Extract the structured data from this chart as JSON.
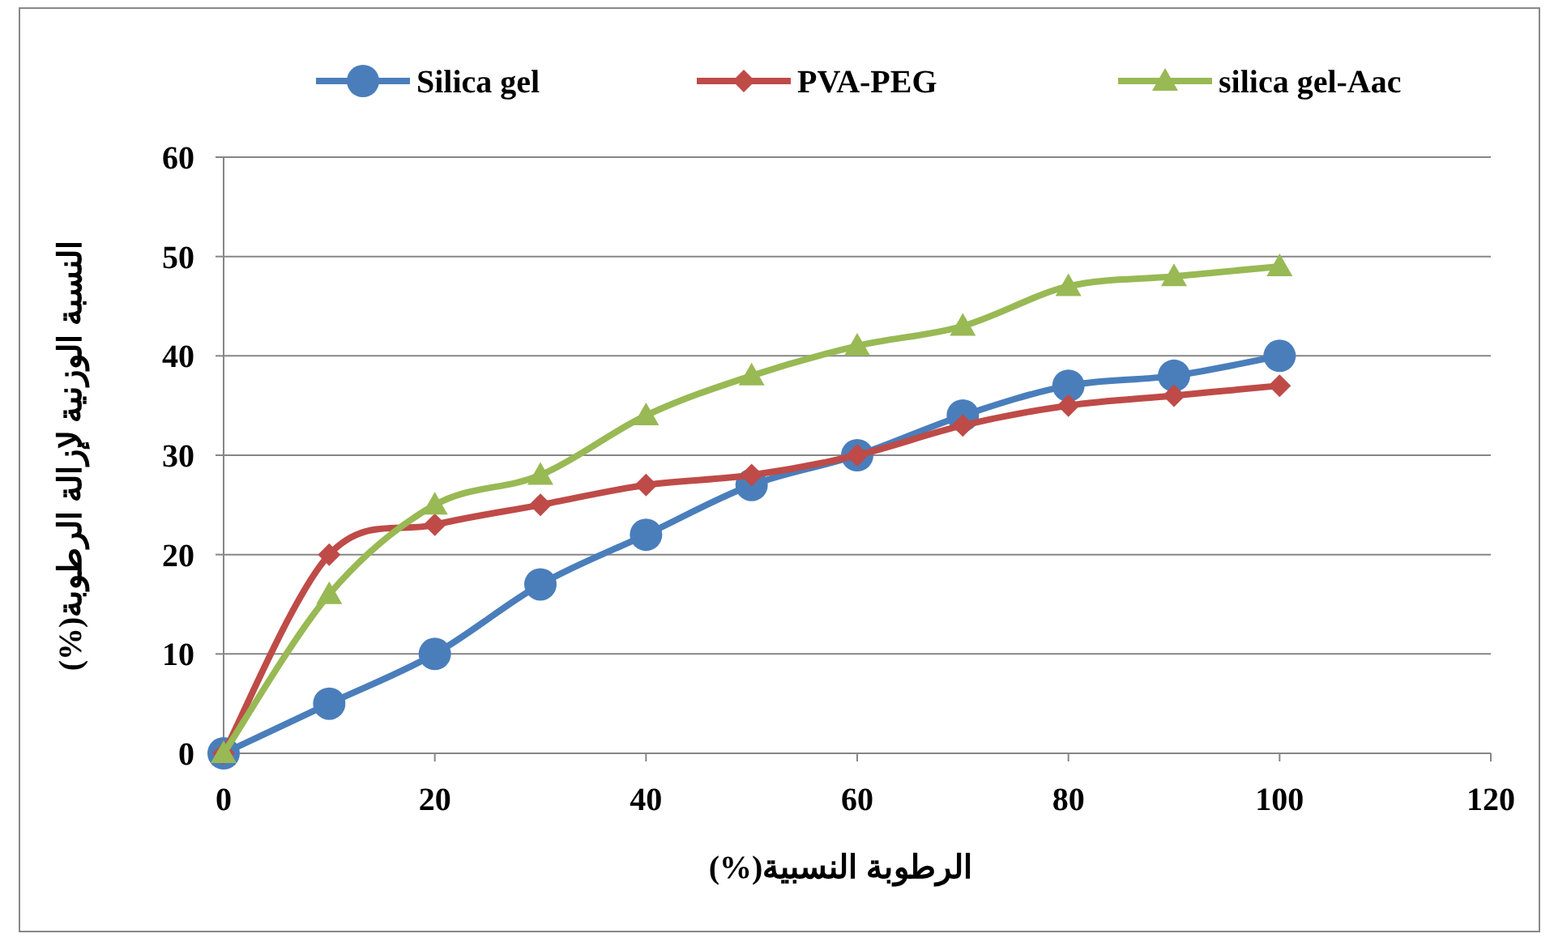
{
  "chart_data": {
    "type": "line",
    "xlabel": "الرطوبة النسبية(%)",
    "ylabel": "النسبة الوزنية لإزالة الرطوبة(%)",
    "x": [
      0,
      10,
      20,
      30,
      40,
      50,
      60,
      70,
      80,
      90,
      100
    ],
    "series": [
      {
        "name": "Silica gel",
        "color": "#4a7ebb",
        "marker": "circle",
        "values": [
          0,
          5,
          10,
          17,
          22,
          27,
          30,
          34,
          37,
          38,
          40
        ]
      },
      {
        "name": "PVA-PEG",
        "color": "#be4b48",
        "marker": "diamond",
        "values": [
          0,
          20,
          23,
          25,
          27,
          28,
          30,
          33,
          35,
          36,
          37
        ]
      },
      {
        "name": "silica gel-Aac",
        "color": "#98b954",
        "marker": "triangle",
        "values": [
          0,
          16,
          25,
          28,
          34,
          38,
          41,
          43,
          47,
          48,
          49
        ]
      }
    ],
    "xlim": [
      0,
      120
    ],
    "xticks": [
      0,
      20,
      40,
      60,
      80,
      100,
      120
    ],
    "ylim": [
      0,
      60
    ],
    "yticks": [
      0,
      10,
      20,
      30,
      40,
      50,
      60
    ],
    "grid": "y",
    "legend": "top",
    "line_style": "solid"
  }
}
